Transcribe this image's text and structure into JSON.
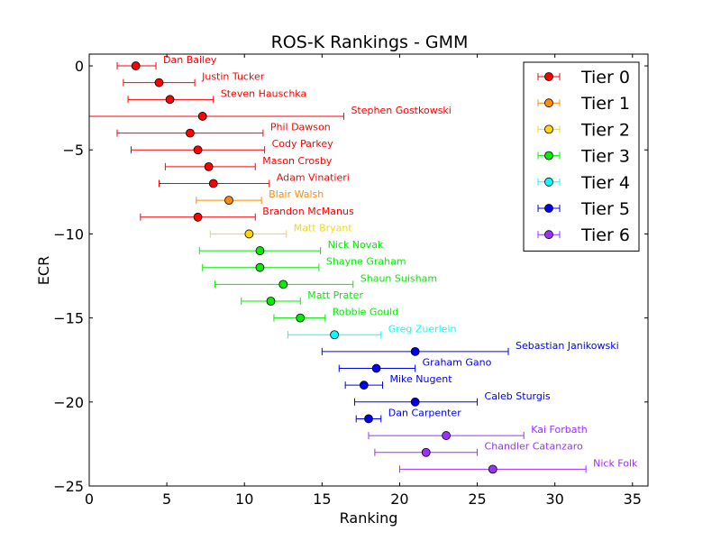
{
  "chart_data": {
    "type": "scatter",
    "title": "ROS-K Rankings - GMM",
    "xlabel": "Ranking",
    "ylabel": "ECR",
    "xlim": [
      0,
      36
    ],
    "ylim": [
      -25,
      0.7
    ],
    "x_ticks": [
      0,
      5,
      10,
      15,
      20,
      25,
      30,
      35
    ],
    "y_ticks": [
      0,
      -5,
      -10,
      -15,
      -20,
      -25
    ],
    "x_tick_labels": [
      "0",
      "5",
      "10",
      "15",
      "20",
      "25",
      "30",
      "35"
    ],
    "y_tick_labels": [
      "0",
      "−5",
      "−10",
      "−15",
      "−20",
      "−25"
    ],
    "grid": false,
    "legend_position": "top-right",
    "series": [
      {
        "name": "Tier 0",
        "color": "#ff0000",
        "points": [
          {
            "label": "Dan Bailey",
            "y": 0,
            "x": 3.0,
            "xmin": 1.8,
            "xmax": 4.3
          },
          {
            "label": "Justin Tucker",
            "y": -1,
            "x": 4.5,
            "xmin": 2.2,
            "xmax": 6.8
          },
          {
            "label": "Steven Hauschka",
            "y": -2,
            "x": 5.2,
            "xmin": 2.5,
            "xmax": 8.0
          },
          {
            "label": "Stephen Gostkowski",
            "y": -3,
            "x": 7.3,
            "xmin": 0.0,
            "xmax": 16.4
          },
          {
            "label": "Phil Dawson",
            "y": -4,
            "x": 6.5,
            "xmin": 1.8,
            "xmax": 11.2
          },
          {
            "label": "Cody Parkey",
            "y": -5,
            "x": 7.0,
            "xmin": 2.7,
            "xmax": 11.3
          },
          {
            "label": "Mason Crosby",
            "y": -6,
            "x": 7.7,
            "xmin": 4.9,
            "xmax": 10.7
          },
          {
            "label": "Adam Vinatieri",
            "y": -7,
            "x": 8.0,
            "xmin": 4.5,
            "xmax": 11.6
          },
          {
            "label": "Brandon McManus",
            "y": -9,
            "x": 7.0,
            "xmin": 3.3,
            "xmax": 10.7
          }
        ]
      },
      {
        "name": "Tier 1",
        "color": "#ff8c00",
        "points": [
          {
            "label": "Blair Walsh",
            "y": -8,
            "x": 9.0,
            "xmin": 6.9,
            "xmax": 11.1
          }
        ]
      },
      {
        "name": "Tier 2",
        "color": "#ffd700",
        "points": [
          {
            "label": "Matt Bryant",
            "y": -10,
            "x": 10.3,
            "xmin": 7.8,
            "xmax": 12.7
          }
        ]
      },
      {
        "name": "Tier 3",
        "color": "#00ee00",
        "points": [
          {
            "label": "Nick Novak",
            "y": -11,
            "x": 11.0,
            "xmin": 7.1,
            "xmax": 14.9
          },
          {
            "label": "Shayne Graham",
            "y": -12,
            "x": 11.0,
            "xmin": 7.3,
            "xmax": 14.8
          },
          {
            "label": "Shaun Suisham",
            "y": -13,
            "x": 12.5,
            "xmin": 8.1,
            "xmax": 17.0
          },
          {
            "label": "Matt Prater",
            "y": -14,
            "x": 11.7,
            "xmin": 9.8,
            "xmax": 13.6
          },
          {
            "label": "Robbie Gould",
            "y": -15,
            "x": 13.6,
            "xmin": 11.9,
            "xmax": 15.2
          }
        ]
      },
      {
        "name": "Tier 4",
        "color": "#00ffff",
        "points": [
          {
            "label": "Greg Zuerlein",
            "y": -16,
            "x": 15.8,
            "xmin": 12.8,
            "xmax": 18.8
          }
        ]
      },
      {
        "name": "Tier 5",
        "color": "#0000ee",
        "points": [
          {
            "label": "Sebastian Janikowski",
            "y": -17,
            "x": 21.0,
            "xmin": 15.0,
            "xmax": 27.0
          },
          {
            "label": "Graham Gano",
            "y": -18,
            "x": 18.5,
            "xmin": 16.1,
            "xmax": 21.0
          },
          {
            "label": "Mike Nugent",
            "y": -19,
            "x": 17.7,
            "xmin": 16.5,
            "xmax": 18.9
          },
          {
            "label": "Caleb Sturgis",
            "y": -20,
            "x": 21.0,
            "xmin": 17.1,
            "xmax": 25.0
          },
          {
            "label": "Dan Carpenter",
            "y": -21,
            "x": 18.0,
            "xmin": 17.2,
            "xmax": 18.8
          }
        ]
      },
      {
        "name": "Tier 6",
        "color": "#9b30ff",
        "points": [
          {
            "label": "Kai Forbath",
            "y": -22,
            "x": 23.0,
            "xmin": 18.0,
            "xmax": 28.0
          },
          {
            "label": "Chandler Catanzaro",
            "y": -23,
            "x": 21.7,
            "xmin": 18.4,
            "xmax": 25.0
          },
          {
            "label": "Nick Folk",
            "y": -24,
            "x": 26.0,
            "xmin": 20.0,
            "xmax": 32.0
          }
        ]
      }
    ]
  }
}
